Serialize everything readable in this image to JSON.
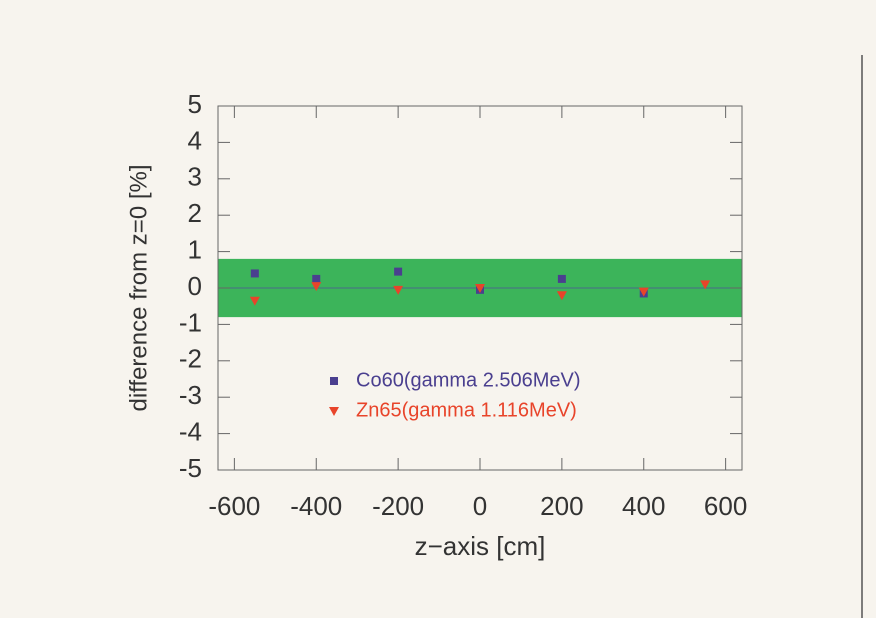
{
  "chart_data": {
    "type": "scatter",
    "x_label": "z−axis [cm]",
    "y_label": "difference from z=0 [%]",
    "xlim": [
      -640,
      640
    ],
    "xticks": [
      -600,
      -400,
      -200,
      0,
      200,
      400,
      600
    ],
    "ylim": [
      -5,
      5
    ],
    "yticks": [
      -5,
      -4,
      -3,
      -2,
      -1,
      0,
      1,
      2,
      3,
      4,
      5
    ],
    "band": [
      -0.8,
      0.8
    ],
    "band_color": "#3cb45a",
    "series": [
      {
        "name": "Co60(gamma 2.506MeV)",
        "color": "#4a3f8f",
        "marker": "square",
        "x": [
          -550,
          -400,
          -200,
          0,
          200,
          400
        ],
        "values": [
          0.4,
          0.25,
          0.45,
          -0.05,
          0.25,
          -0.15
        ]
      },
      {
        "name": "Zn65(gamma 1.116MeV)",
        "color": "#e8442a",
        "marker": "triangle-down",
        "x": [
          -550,
          -400,
          -200,
          0,
          200,
          400,
          550
        ],
        "values": [
          -0.35,
          0.05,
          -0.05,
          0.0,
          -0.2,
          -0.1,
          0.1
        ]
      }
    ]
  }
}
